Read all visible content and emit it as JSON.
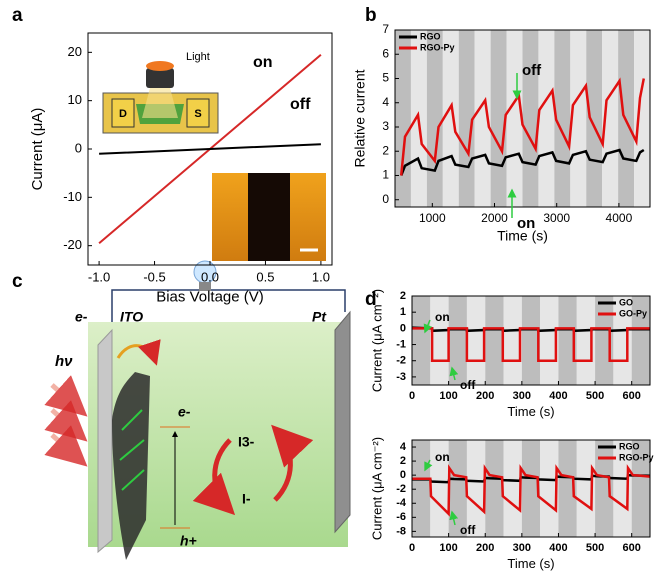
{
  "panel_labels": [
    "a",
    "b",
    "c",
    "d"
  ],
  "diagram": {
    "electron_left": "e-",
    "ito": "ITO",
    "pt": "Pt",
    "light": "hν",
    "electron": "e-",
    "hole": "h+",
    "triiodide": "I3-",
    "iodide": "I-"
  },
  "chart_data": [
    {
      "type": "line",
      "xlabel": "Bias Voltage (V)",
      "ylabel": "Current (μA)",
      "inset_labels": [
        "Light",
        "D",
        "S"
      ],
      "x": [
        -1.0,
        0.0,
        1.0
      ],
      "series": [
        {
          "name": "on",
          "color": "#d62828",
          "values": [
            -19.5,
            0,
            19.5
          ]
        },
        {
          "name": "off",
          "color": "#000000",
          "values": [
            -1,
            0,
            1
          ]
        }
      ],
      "xlim": [
        -1.1,
        1.1
      ],
      "ylim": [
        -24,
        24
      ],
      "xticks": [
        {
          "value": -1.0,
          "label": "-1.0"
        },
        {
          "value": -0.5,
          "label": "-0.5"
        },
        {
          "value": 0.0,
          "label": "0.0"
        },
        {
          "value": 0.5,
          "label": "0.5"
        },
        {
          "value": 1.0,
          "label": "1.0"
        }
      ],
      "yticks": [
        -20,
        -10,
        0,
        10,
        20
      ]
    },
    {
      "type": "line",
      "xlabel": "Time (s)",
      "ylabel": "Relative current",
      "legend": "top-left",
      "annotations": [
        "off",
        "on"
      ],
      "x": [
        500,
        560,
        770,
        830,
        1040,
        1100,
        1310,
        1370,
        1580,
        1640,
        1850,
        1910,
        2120,
        2180,
        2390,
        2450,
        2660,
        2720,
        2930,
        2990,
        3200,
        3260,
        3470,
        3530,
        3740,
        3800,
        4010,
        4070,
        4280,
        4340,
        4400
      ],
      "series": [
        {
          "name": "RGO",
          "color": "#000000",
          "values": [
            1.0,
            1.4,
            1.7,
            1.3,
            1.2,
            1.6,
            1.8,
            1.45,
            1.35,
            1.7,
            1.85,
            1.5,
            1.4,
            1.75,
            1.9,
            1.55,
            1.45,
            1.8,
            1.95,
            1.6,
            1.5,
            1.85,
            2.0,
            1.65,
            1.55,
            1.9,
            2.05,
            1.7,
            1.6,
            1.95,
            2.05
          ]
        },
        {
          "name": "RGO-Py",
          "color": "#e01010",
          "values": [
            1.0,
            2.6,
            3.5,
            2.3,
            1.6,
            3.0,
            3.9,
            2.8,
            1.9,
            3.3,
            4.1,
            3.0,
            2.0,
            3.5,
            4.3,
            3.1,
            2.1,
            3.7,
            4.5,
            3.3,
            2.2,
            3.9,
            4.7,
            3.4,
            2.3,
            4.1,
            4.9,
            3.5,
            2.4,
            4.2,
            5.0
          ]
        }
      ],
      "xlim": [
        400,
        4500
      ],
      "ylim": [
        -0.3,
        7
      ],
      "xticks": [
        1000,
        2000,
        3000,
        4000
      ],
      "yticks": [
        0,
        1,
        2,
        3,
        4,
        5,
        6,
        7
      ]
    },
    {
      "type": "line",
      "xlabel": "Time (s)",
      "ylabel": "Current (μA cm⁻²)",
      "legend": "top-right",
      "annotations": [
        "on",
        "off"
      ],
      "x": [
        0,
        55,
        55,
        100,
        100,
        150,
        150,
        197,
        197,
        248,
        248,
        295,
        295,
        345,
        345,
        393,
        393,
        442,
        442,
        490,
        490,
        540,
        540,
        588,
        588,
        650
      ],
      "series": [
        {
          "name": "GO",
          "color": "#000000",
          "values": [
            0.05,
            0,
            -0.15,
            -0.1,
            -0.05,
            -0.05,
            -0.15,
            -0.1,
            -0.05,
            -0.05,
            -0.15,
            -0.1,
            -0.05,
            -0.05,
            -0.15,
            -0.1,
            -0.05,
            -0.05,
            -0.15,
            -0.1,
            -0.05,
            -0.05,
            -0.15,
            -0.1,
            -0.05,
            -0.05
          ]
        },
        {
          "name": "GO-Py",
          "color": "#e01010",
          "values": [
            0,
            0,
            -2,
            -2,
            0,
            0,
            -2,
            -2,
            0,
            0,
            -2,
            -2,
            0,
            0,
            -2,
            -2,
            0,
            0,
            -2,
            -2,
            0,
            0,
            -2,
            -2,
            0,
            0
          ]
        }
      ],
      "xlim": [
        0,
        650
      ],
      "ylim": [
        -3.5,
        2
      ],
      "xticks": [
        0,
        100,
        200,
        300,
        400,
        500,
        600
      ],
      "yticks": [
        2,
        1,
        0,
        -1,
        -2,
        -3
      ]
    },
    {
      "type": "line",
      "xlabel": "Time (s)",
      "ylabel": "Current (μA cm⁻²)",
      "legend": "top-right",
      "annotations": [
        "on",
        "off"
      ],
      "x": [
        0,
        50,
        52,
        100,
        102,
        115,
        148,
        150,
        197,
        199,
        212,
        246,
        248,
        295,
        297,
        310,
        343,
        345,
        393,
        395,
        408,
        440,
        442,
        490,
        492,
        505,
        538,
        540,
        588,
        590,
        603,
        650
      ],
      "series": [
        {
          "name": "RGO",
          "color": "#000000",
          "values": [
            -0.6,
            -0.6,
            -0.9,
            -1.0,
            -0.5,
            -0.55,
            -0.6,
            -0.8,
            -0.9,
            -0.4,
            -0.45,
            -0.5,
            -0.7,
            -0.8,
            -0.3,
            -0.35,
            -0.4,
            -0.6,
            -0.7,
            -0.2,
            -0.25,
            -0.3,
            -0.5,
            -0.6,
            -0.1,
            -0.15,
            -0.2,
            -0.4,
            -0.5,
            0,
            -0.05,
            -0.1
          ]
        },
        {
          "name": "RGO-Py",
          "color": "#e01010",
          "values": [
            -0.5,
            -0.5,
            -3,
            -5.5,
            1,
            0,
            -0.3,
            -3,
            -5.2,
            1,
            0,
            -0.3,
            -3,
            -5,
            1,
            0,
            -0.3,
            -3,
            -5,
            1,
            0,
            -0.3,
            -3,
            -4.8,
            1,
            0,
            -0.3,
            -3,
            -4.8,
            1,
            0,
            -0.2
          ]
        }
      ],
      "xlim": [
        0,
        650
      ],
      "ylim": [
        -8.8,
        5
      ],
      "xticks": [
        0,
        100,
        200,
        300,
        400,
        500,
        600
      ],
      "yticks": [
        4,
        2,
        0,
        -2,
        -4,
        -6,
        -8
      ]
    }
  ]
}
